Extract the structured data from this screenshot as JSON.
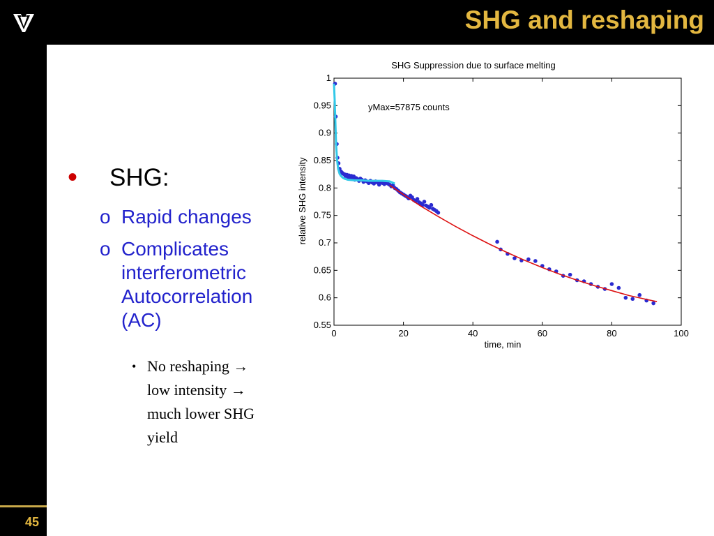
{
  "slide": {
    "title": "SHG and reshaping",
    "logo_icon": "vanderbilt-v-logo-icon",
    "number": "45",
    "colors": {
      "background": "#000000",
      "title": "#e3b740",
      "content": "#ffffff",
      "bullet_red": "#cc0000",
      "sub_blue": "#2222cc"
    }
  },
  "bullets": {
    "level1": {
      "marker": "•",
      "text": "SHG:"
    },
    "level2": [
      {
        "marker": "o",
        "lines": [
          "Rapid changes"
        ]
      },
      {
        "marker": "o",
        "lines": [
          "Complicates",
          "interferometric",
          "Autocorrelation",
          "(AC)"
        ]
      }
    ],
    "level3": {
      "marker": "•",
      "lines": [
        "No reshaping →",
        "low intensity →",
        "much lower SHG",
        "yield"
      ]
    }
  },
  "chart_data": {
    "type": "scatter",
    "title": "SHG Suppression due to surface melting",
    "xlabel": "time, min",
    "ylabel": "relative SHG intensity",
    "annotation": "yMax=57875 counts",
    "xlim": [
      0,
      100
    ],
    "ylim": [
      0.55,
      1.0
    ],
    "xticks": [
      0,
      20,
      40,
      60,
      80,
      100
    ],
    "yticks": [
      0.55,
      0.6,
      0.65,
      0.7,
      0.75,
      0.8,
      0.85,
      0.9,
      0.95,
      1
    ],
    "ytick_labels": [
      "0.55",
      "0.6",
      "0.65",
      "0.7",
      "0.75",
      "0.8",
      "0.85",
      "0.9",
      "0.95",
      "1"
    ],
    "grid": false,
    "series": [
      {
        "style": "points",
        "color": "#2a2ad0",
        "x": [
          0.3,
          0.5,
          0.8,
          1,
          1.3,
          1.6,
          2,
          2.3,
          2.6,
          3,
          3.3,
          3.7,
          4,
          4.3,
          4.7,
          5,
          5.3,
          5.7,
          6,
          6.4,
          6.8,
          7.2,
          7.6,
          8,
          8.5,
          9,
          9.5,
          10,
          10.5,
          11,
          11.5,
          12,
          12.5,
          13,
          13.5,
          14,
          14.5,
          15,
          15.5,
          16,
          16.5,
          17,
          17.5,
          18,
          18.5,
          19,
          19.5,
          20,
          20.5,
          21,
          21.5,
          22,
          22.5,
          23,
          23.5,
          24,
          24.5,
          25,
          25.5,
          26,
          26.5,
          27,
          27.5,
          28,
          28.5,
          29,
          29.5,
          30,
          47,
          48,
          50,
          52,
          54,
          56,
          58,
          60,
          62,
          64,
          66,
          68,
          70,
          72,
          74,
          76,
          78,
          80,
          82,
          84,
          86,
          88,
          90,
          92
        ],
        "y": [
          0.99,
          0.93,
          0.88,
          0.855,
          0.845,
          0.835,
          0.83,
          0.828,
          0.826,
          0.825,
          0.822,
          0.824,
          0.82,
          0.823,
          0.818,
          0.822,
          0.819,
          0.821,
          0.815,
          0.818,
          0.816,
          0.813,
          0.817,
          0.815,
          0.811,
          0.814,
          0.812,
          0.809,
          0.813,
          0.81,
          0.808,
          0.812,
          0.81,
          0.806,
          0.811,
          0.809,
          0.807,
          0.81,
          0.808,
          0.806,
          0.803,
          0.805,
          0.8,
          0.798,
          0.795,
          0.792,
          0.79,
          0.788,
          0.786,
          0.784,
          0.781,
          0.786,
          0.783,
          0.778,
          0.776,
          0.78,
          0.774,
          0.772,
          0.769,
          0.775,
          0.768,
          0.766,
          0.764,
          0.769,
          0.762,
          0.76,
          0.758,
          0.755,
          0.702,
          0.688,
          0.68,
          0.672,
          0.668,
          0.67,
          0.667,
          0.658,
          0.652,
          0.648,
          0.64,
          0.642,
          0.632,
          0.63,
          0.625,
          0.62,
          0.616,
          0.625,
          0.618,
          0.6,
          0.598,
          0.605,
          0.595,
          0.59
        ]
      },
      {
        "style": "line",
        "color": "#33c8e8",
        "x": [
          0,
          0.2,
          0.4,
          0.6,
          0.9,
          1.2,
          1.6,
          2,
          2.5,
          3,
          4,
          6,
          8,
          10,
          12,
          14,
          16,
          17.5
        ],
        "y": [
          0.99,
          0.96,
          0.92,
          0.88,
          0.85,
          0.835,
          0.826,
          0.822,
          0.819,
          0.817,
          0.815,
          0.814,
          0.814,
          0.813,
          0.813,
          0.813,
          0.812,
          0.808
        ]
      },
      {
        "style": "line",
        "color": "#dd1111",
        "x": [
          16,
          20,
          25,
          30,
          35,
          40,
          45,
          50,
          55,
          60,
          65,
          70,
          75,
          80,
          85,
          90,
          93
        ],
        "y": [
          0.805,
          0.788,
          0.767,
          0.748,
          0.73,
          0.713,
          0.697,
          0.682,
          0.668,
          0.655,
          0.643,
          0.632,
          0.622,
          0.613,
          0.604,
          0.597,
          0.593
        ]
      }
    ]
  }
}
